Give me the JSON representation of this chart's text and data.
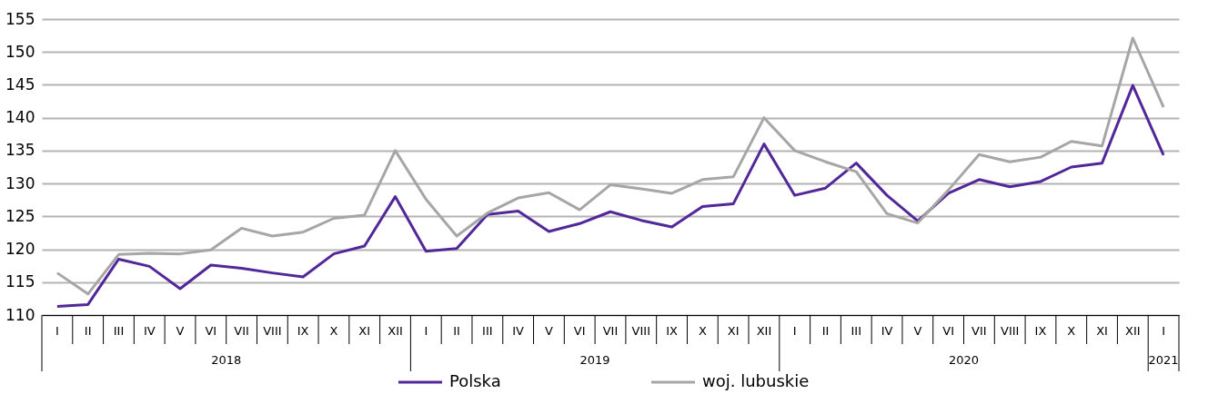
{
  "chart_data": {
    "type": "line",
    "categories": [
      "I",
      "II",
      "III",
      "IV",
      "V",
      "VI",
      "VII",
      "VIII",
      "IX",
      "X",
      "XI",
      "XII",
      "I",
      "II",
      "III",
      "IV",
      "V",
      "VI",
      "VII",
      "VIII",
      "IX",
      "X",
      "XI",
      "XII",
      "I",
      "II",
      "III",
      "IV",
      "V",
      "VI",
      "VII",
      "VIII",
      "IX",
      "X",
      "XI",
      "XII",
      "I"
    ],
    "annotations": [
      "2018",
      "2019",
      "2020",
      "2021"
    ],
    "series": [
      {
        "name": "Polska",
        "color": "#52279a",
        "values": [
          111.3,
          111.6,
          118.5,
          117.4,
          114.0,
          117.6,
          117.1,
          116.4,
          115.8,
          119.3,
          120.5,
          128.0,
          119.7,
          120.1,
          125.3,
          125.8,
          122.7,
          123.9,
          125.7,
          124.4,
          123.4,
          126.5,
          126.9,
          136.0,
          128.2,
          129.3,
          133.1,
          128.2,
          124.3,
          128.5,
          130.6,
          129.5,
          130.3,
          132.5,
          133.1,
          144.9,
          134.3
        ]
      },
      {
        "name": "woj. lubuskie",
        "color": "#a6a6a6",
        "values": [
          116.4,
          113.2,
          119.2,
          119.4,
          119.3,
          119.9,
          123.2,
          122.0,
          122.6,
          124.7,
          125.2,
          135.0,
          127.6,
          122.0,
          125.5,
          127.8,
          128.6,
          126.0,
          129.8,
          129.2,
          128.5,
          130.6,
          131.0,
          140.0,
          135.0,
          133.3,
          131.8,
          125.4,
          124.0,
          129.0,
          134.4,
          133.3,
          134.0,
          136.4,
          135.7,
          152.1,
          141.6
        ]
      }
    ],
    "ylim": [
      110,
      155
    ],
    "yticks": [
      110,
      115,
      120,
      125,
      130,
      135,
      140,
      145,
      150,
      155
    ],
    "grid": "y",
    "legend": "bottom",
    "line_style": "solid",
    "marker": "none"
  }
}
